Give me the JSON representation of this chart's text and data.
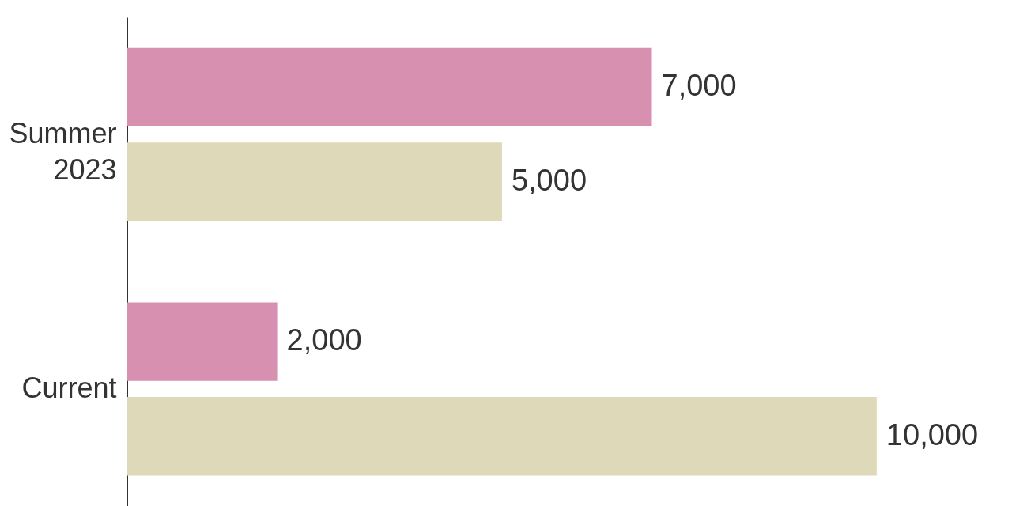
{
  "chart_data": {
    "type": "bar",
    "orientation": "horizontal",
    "categories": [
      "Summer 2023",
      "Current"
    ],
    "series": [
      {
        "color": "#d890b0",
        "values": [
          7000,
          2000
        ],
        "value_labels": [
          "7,000",
          "2,000"
        ]
      },
      {
        "color": "#ded9b8",
        "values": [
          5000,
          10000
        ],
        "value_labels": [
          "5,000",
          "10,000"
        ]
      }
    ],
    "legend": false,
    "grid": false
  }
}
